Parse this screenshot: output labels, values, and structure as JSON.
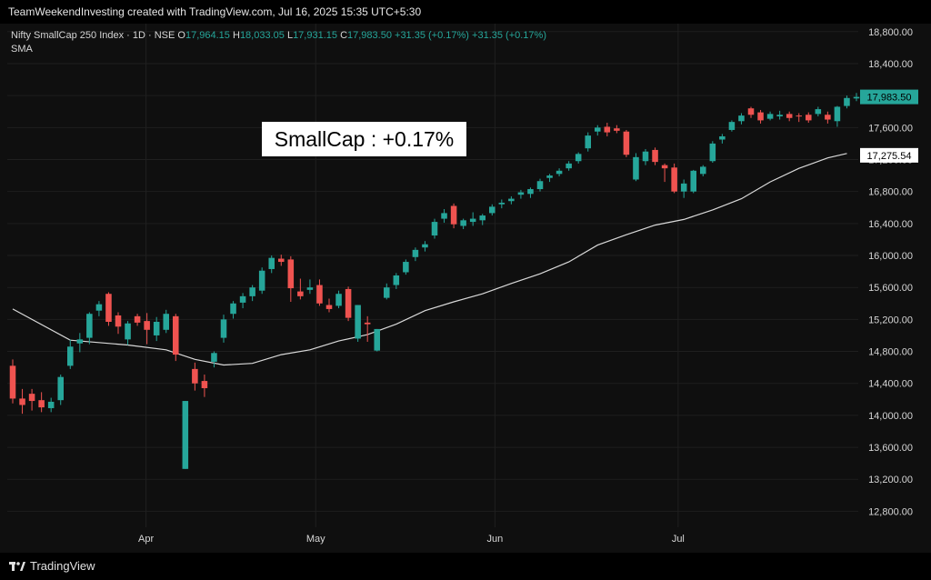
{
  "caption": "TeamWeekendInvesting created with TradingView.com, Jul 16, 2025 15:35 UTC+5:30",
  "legend": {
    "symbol": "Nifty SmallCap 250 Index · 1D · NSE",
    "o_key": "O",
    "o": "17,964.15",
    "h_key": "H",
    "h": "18,033.05",
    "l_key": "L",
    "l": "17,931.15",
    "c_key": "C",
    "c": "17,983.50",
    "change1": "+31.35 (+0.17%)",
    "change2": "+31.35 (+0.17%)",
    "indicator": "SMA"
  },
  "annotation": "SmallCap : +0.17%",
  "brand": "TradingView",
  "colors": {
    "up": "#26a69a",
    "down": "#ef5350",
    "sma": "#d9d9d9",
    "grid": "#1f1f1f",
    "text": "#d6d6d6"
  },
  "chart_data": {
    "type": "candlestick",
    "ylim": [
      12600,
      18900
    ],
    "yticks": [
      12800,
      13200,
      13600,
      14000,
      14400,
      14800,
      15200,
      15600,
      16000,
      16400,
      16800,
      17200,
      17600,
      18000,
      18400,
      18800
    ],
    "ytick_labels": [
      "12,800.00",
      "13,200.00",
      "13,600.00",
      "14,000.00",
      "14,400.00",
      "14,800.00",
      "15,200.00",
      "15,600.00",
      "16,000.00",
      "16,400.00",
      "16,800.00",
      "17,200.00",
      "17,600.00",
      "18,000.00",
      "18,400.00",
      "18,800.00"
    ],
    "xticks": [
      {
        "label": "Apr",
        "index": 13.9
      },
      {
        "label": "May",
        "index": 31.6
      },
      {
        "label": "Jun",
        "index": 50.3
      },
      {
        "label": "Jul",
        "index": 69.4
      }
    ],
    "last_price_label": "17,983.50",
    "sma_last_label": "17,275.54",
    "candles": [
      {
        "o": 14620,
        "h": 14700,
        "l": 14150,
        "c": 14210
      },
      {
        "o": 14210,
        "h": 14330,
        "l": 14020,
        "c": 14130
      },
      {
        "o": 14270,
        "h": 14330,
        "l": 14060,
        "c": 14180
      },
      {
        "o": 14190,
        "h": 14290,
        "l": 14040,
        "c": 14100
      },
      {
        "o": 14090,
        "h": 14220,
        "l": 14040,
        "c": 14170
      },
      {
        "o": 14190,
        "h": 14510,
        "l": 14130,
        "c": 14480
      },
      {
        "o": 14620,
        "h": 14950,
        "l": 14580,
        "c": 14860
      },
      {
        "o": 14900,
        "h": 15030,
        "l": 14790,
        "c": 14950
      },
      {
        "o": 14970,
        "h": 15290,
        "l": 14890,
        "c": 15270
      },
      {
        "o": 15310,
        "h": 15430,
        "l": 15240,
        "c": 15390
      },
      {
        "o": 15520,
        "h": 15540,
        "l": 15120,
        "c": 15170
      },
      {
        "o": 15250,
        "h": 15290,
        "l": 15020,
        "c": 15110
      },
      {
        "o": 14950,
        "h": 15180,
        "l": 14880,
        "c": 15150
      },
      {
        "o": 15240,
        "h": 15270,
        "l": 15120,
        "c": 15160
      },
      {
        "o": 15180,
        "h": 15280,
        "l": 14890,
        "c": 15070
      },
      {
        "o": 15000,
        "h": 15230,
        "l": 14930,
        "c": 15170
      },
      {
        "o": 15070,
        "h": 15320,
        "l": 15030,
        "c": 15270
      },
      {
        "o": 15240,
        "h": 15270,
        "l": 14680,
        "c": 14760
      },
      {
        "o": 13330,
        "h": 14180,
        "l": 13330,
        "c": 14180
      },
      {
        "o": 14580,
        "h": 14660,
        "l": 14310,
        "c": 14400
      },
      {
        "o": 14430,
        "h": 14510,
        "l": 14230,
        "c": 14340
      },
      {
        "o": 14670,
        "h": 14800,
        "l": 14600,
        "c": 14780
      },
      {
        "o": 14970,
        "h": 15260,
        "l": 14910,
        "c": 15200
      },
      {
        "o": 15270,
        "h": 15430,
        "l": 15210,
        "c": 15400
      },
      {
        "o": 15410,
        "h": 15530,
        "l": 15340,
        "c": 15490
      },
      {
        "o": 15490,
        "h": 15630,
        "l": 15430,
        "c": 15600
      },
      {
        "o": 15560,
        "h": 15850,
        "l": 15520,
        "c": 15810
      },
      {
        "o": 15830,
        "h": 16000,
        "l": 15780,
        "c": 15970
      },
      {
        "o": 15960,
        "h": 16010,
        "l": 15870,
        "c": 15920
      },
      {
        "o": 15950,
        "h": 15990,
        "l": 15420,
        "c": 15590
      },
      {
        "o": 15550,
        "h": 15710,
        "l": 15450,
        "c": 15490
      },
      {
        "o": 15570,
        "h": 15700,
        "l": 15520,
        "c": 15600
      },
      {
        "o": 15630,
        "h": 15700,
        "l": 15370,
        "c": 15400
      },
      {
        "o": 15380,
        "h": 15460,
        "l": 15290,
        "c": 15330
      },
      {
        "o": 15370,
        "h": 15560,
        "l": 15340,
        "c": 15520
      },
      {
        "o": 15580,
        "h": 15610,
        "l": 15180,
        "c": 15220
      },
      {
        "o": 14960,
        "h": 15380,
        "l": 14920,
        "c": 15380
      },
      {
        "o": 15160,
        "h": 15240,
        "l": 14920,
        "c": 15140
      },
      {
        "o": 14810,
        "h": 15080,
        "l": 14800,
        "c": 15080
      },
      {
        "o": 15470,
        "h": 15650,
        "l": 15450,
        "c": 15600
      },
      {
        "o": 15630,
        "h": 15780,
        "l": 15580,
        "c": 15750
      },
      {
        "o": 15790,
        "h": 15950,
        "l": 15760,
        "c": 15920
      },
      {
        "o": 15980,
        "h": 16100,
        "l": 15930,
        "c": 16070
      },
      {
        "o": 16100,
        "h": 16180,
        "l": 16050,
        "c": 16140
      },
      {
        "o": 16250,
        "h": 16460,
        "l": 16210,
        "c": 16420
      },
      {
        "o": 16460,
        "h": 16580,
        "l": 16410,
        "c": 16530
      },
      {
        "o": 16620,
        "h": 16650,
        "l": 16340,
        "c": 16390
      },
      {
        "o": 16370,
        "h": 16460,
        "l": 16330,
        "c": 16440
      },
      {
        "o": 16420,
        "h": 16540,
        "l": 16370,
        "c": 16460
      },
      {
        "o": 16440,
        "h": 16520,
        "l": 16380,
        "c": 16500
      },
      {
        "o": 16530,
        "h": 16640,
        "l": 16500,
        "c": 16610
      },
      {
        "o": 16640,
        "h": 16700,
        "l": 16590,
        "c": 16660
      },
      {
        "o": 16680,
        "h": 16740,
        "l": 16640,
        "c": 16710
      },
      {
        "o": 16760,
        "h": 16820,
        "l": 16710,
        "c": 16790
      },
      {
        "o": 16770,
        "h": 16850,
        "l": 16720,
        "c": 16830
      },
      {
        "o": 16830,
        "h": 16960,
        "l": 16800,
        "c": 16930
      },
      {
        "o": 16970,
        "h": 17020,
        "l": 16920,
        "c": 17000
      },
      {
        "o": 17020,
        "h": 17090,
        "l": 16990,
        "c": 17060
      },
      {
        "o": 17090,
        "h": 17180,
        "l": 17060,
        "c": 17150
      },
      {
        "o": 17180,
        "h": 17290,
        "l": 17150,
        "c": 17270
      },
      {
        "o": 17340,
        "h": 17540,
        "l": 17300,
        "c": 17500
      },
      {
        "o": 17550,
        "h": 17630,
        "l": 17500,
        "c": 17600
      },
      {
        "o": 17610,
        "h": 17660,
        "l": 17490,
        "c": 17540
      },
      {
        "o": 17590,
        "h": 17630,
        "l": 17530,
        "c": 17560
      },
      {
        "o": 17550,
        "h": 17570,
        "l": 17230,
        "c": 17260
      },
      {
        "o": 16950,
        "h": 17280,
        "l": 16930,
        "c": 17230
      },
      {
        "o": 17180,
        "h": 17330,
        "l": 17130,
        "c": 17300
      },
      {
        "o": 17320,
        "h": 17350,
        "l": 17130,
        "c": 17170
      },
      {
        "o": 17130,
        "h": 17150,
        "l": 16920,
        "c": 17090
      },
      {
        "o": 17100,
        "h": 17150,
        "l": 16780,
        "c": 16800
      },
      {
        "o": 16800,
        "h": 16950,
        "l": 16720,
        "c": 16900
      },
      {
        "o": 16800,
        "h": 17070,
        "l": 16780,
        "c": 17060
      },
      {
        "o": 17020,
        "h": 17130,
        "l": 16990,
        "c": 17110
      },
      {
        "o": 17180,
        "h": 17430,
        "l": 17160,
        "c": 17400
      },
      {
        "o": 17450,
        "h": 17520,
        "l": 17400,
        "c": 17490
      },
      {
        "o": 17570,
        "h": 17690,
        "l": 17550,
        "c": 17670
      },
      {
        "o": 17680,
        "h": 17780,
        "l": 17640,
        "c": 17750
      },
      {
        "o": 17840,
        "h": 17860,
        "l": 17720,
        "c": 17760
      },
      {
        "o": 17790,
        "h": 17820,
        "l": 17650,
        "c": 17690
      },
      {
        "o": 17710,
        "h": 17800,
        "l": 17690,
        "c": 17770
      },
      {
        "o": 17740,
        "h": 17810,
        "l": 17700,
        "c": 17760
      },
      {
        "o": 17770,
        "h": 17800,
        "l": 17680,
        "c": 17720
      },
      {
        "o": 17750,
        "h": 17780,
        "l": 17670,
        "c": 17740
      },
      {
        "o": 17760,
        "h": 17790,
        "l": 17660,
        "c": 17690
      },
      {
        "o": 17770,
        "h": 17860,
        "l": 17740,
        "c": 17830
      },
      {
        "o": 17760,
        "h": 17800,
        "l": 17650,
        "c": 17700
      },
      {
        "o": 17680,
        "h": 17870,
        "l": 17610,
        "c": 17860
      },
      {
        "o": 17870,
        "h": 18000,
        "l": 17840,
        "c": 17970
      },
      {
        "o": 17964.15,
        "h": 18033.05,
        "l": 17931.15,
        "c": 17983.5
      }
    ],
    "sma": [
      [
        0,
        15330
      ],
      [
        6,
        14940
      ],
      [
        12,
        14880
      ],
      [
        16,
        14820
      ],
      [
        19,
        14700
      ],
      [
        22,
        14630
      ],
      [
        25,
        14650
      ],
      [
        28,
        14760
      ],
      [
        31,
        14820
      ],
      [
        34,
        14930
      ],
      [
        37,
        15010
      ],
      [
        40,
        15140
      ],
      [
        43,
        15310
      ],
      [
        46,
        15420
      ],
      [
        49,
        15520
      ],
      [
        52,
        15650
      ],
      [
        55,
        15770
      ],
      [
        58,
        15920
      ],
      [
        61,
        16130
      ],
      [
        64,
        16260
      ],
      [
        67,
        16380
      ],
      [
        70,
        16450
      ],
      [
        73,
        16570
      ],
      [
        76,
        16710
      ],
      [
        79,
        16920
      ],
      [
        82,
        17090
      ],
      [
        85,
        17220
      ],
      [
        87,
        17275.54
      ]
    ]
  }
}
